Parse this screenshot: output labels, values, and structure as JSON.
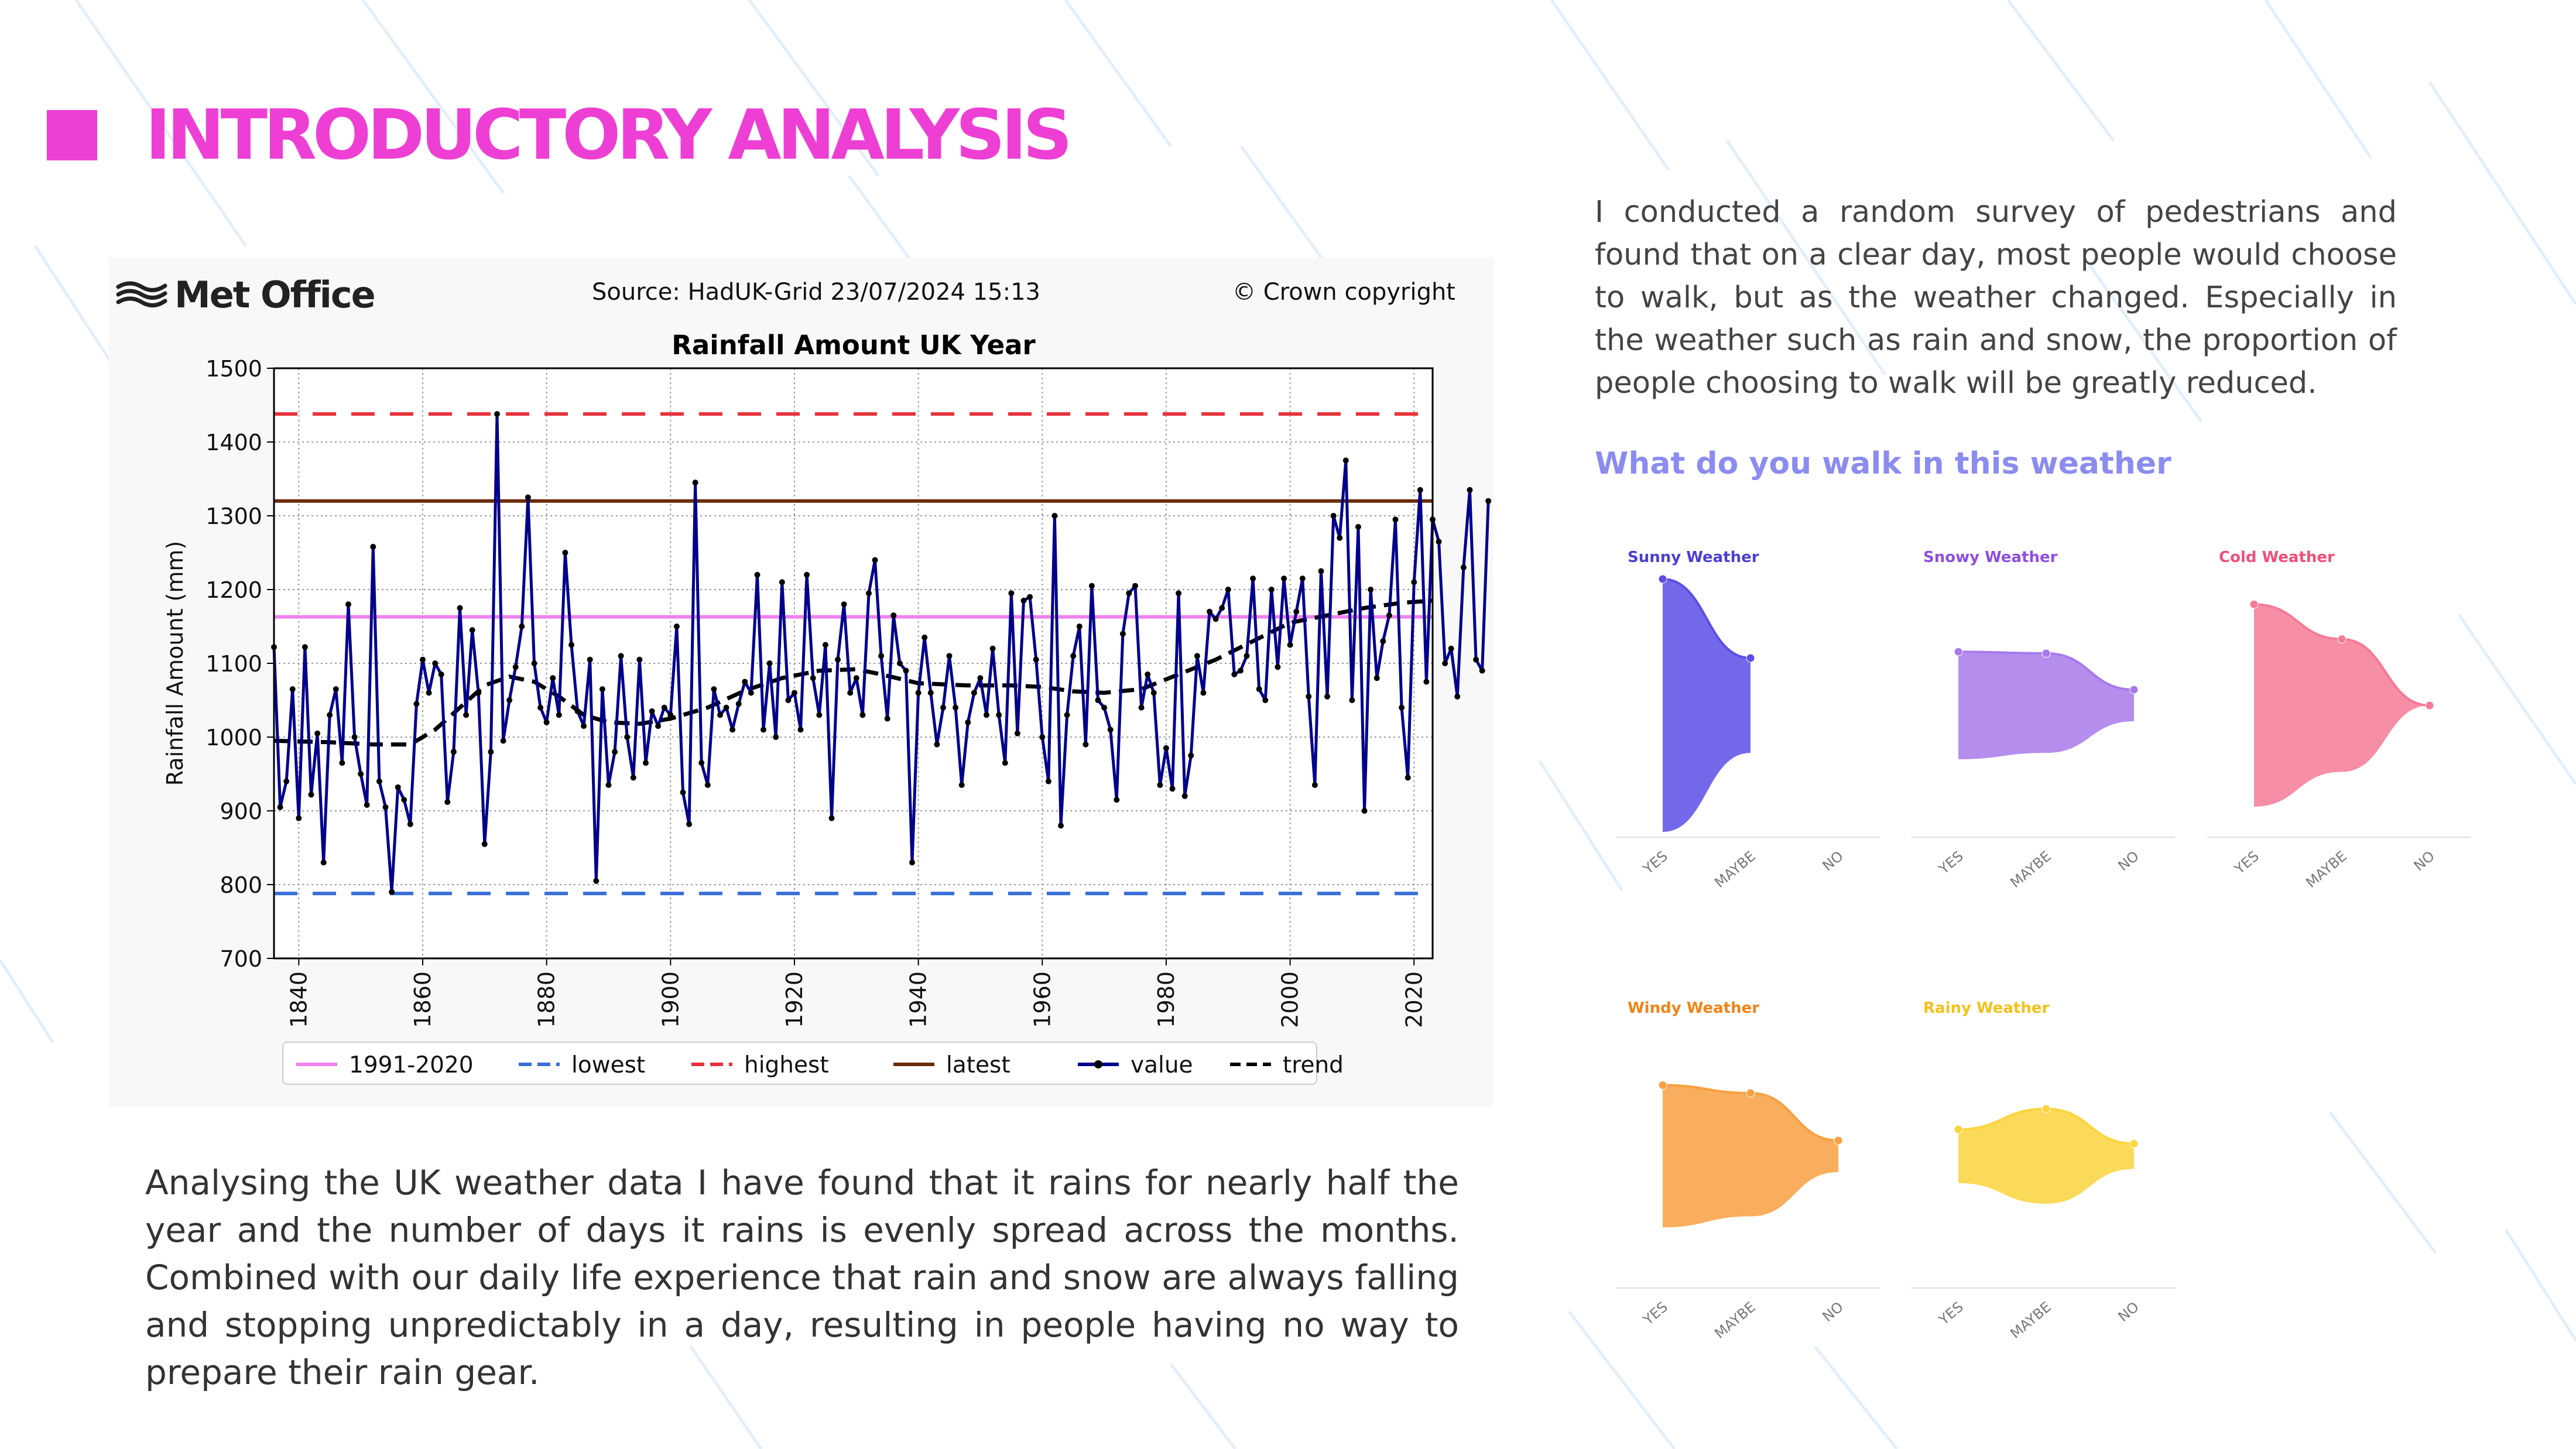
{
  "page": {
    "title": "INTRODUCTORY ANALYSIS",
    "title_color": "#ee3fd4",
    "accent_square_color": "#ee3fd4",
    "analysis_text": "Analysing the UK weather data I have found that it rains for nearly half the year and the number of days it rains is evenly spread across the months. Combined with our daily life experience that rain and snow are always falling and stopping unpredictably in a day, resulting in people having no way to prepare their rain gear.",
    "survey_text": "I conducted a random survey of pedestrians and found that on a clear day, most people would choose to walk, but as the weather changed. Especially in the weather such as rain and snow, the proportion of people choosing to walk will be greatly reduced.",
    "survey_question": "What do you walk in this weather",
    "survey_question_color": "#8b8cf0"
  },
  "chart_data": [
    {
      "type": "line",
      "logo_text": "Met Office",
      "source": "Source: HadUK-Grid 23/07/2024 15:13",
      "copyright": "© Crown copyright",
      "title": "Rainfall Amount UK Year",
      "xlabel": "",
      "ylabel": "Rainfall Amount (mm)",
      "xlim": [
        1836,
        2023
      ],
      "ylim": [
        700,
        1500
      ],
      "x_ticks": [
        "1840",
        "1860",
        "1880",
        "1900",
        "1920",
        "1940",
        "1960",
        "1980",
        "2000",
        "2020"
      ],
      "y_ticks": [
        "700",
        "800",
        "900",
        "1000",
        "1100",
        "1200",
        "1300",
        "1400",
        "1500"
      ],
      "grid": true,
      "legend_position": "bottom",
      "legend": [
        "1991-2020",
        "lowest",
        "highest",
        "latest",
        "value",
        "trend"
      ],
      "reference_lines": [
        {
          "name": "1991-2020",
          "value": 1163,
          "color": "#ee82ee",
          "style": "solid"
        },
        {
          "name": "lowest",
          "value": 788,
          "color": "#3a6fd8",
          "style": "dashed"
        },
        {
          "name": "highest",
          "value": 1438,
          "color": "#e8323c",
          "style": "dashed"
        },
        {
          "name": "latest",
          "value": 1320,
          "color": "#6b2c05",
          "style": "solid"
        }
      ],
      "series": [
        {
          "name": "value",
          "color": "#00008b",
          "x_start": 1836,
          "values": [
            1122,
            905,
            940,
            1065,
            890,
            1122,
            922,
            1005,
            830,
            1030,
            1065,
            965,
            1180,
            1000,
            950,
            908,
            1258,
            940,
            905,
            790,
            932,
            915,
            882,
            1045,
            1105,
            1060,
            1100,
            1085,
            912,
            980,
            1175,
            1030,
            1145,
            1060,
            855,
            980,
            1438,
            995,
            1050,
            1095,
            1150,
            1325,
            1100,
            1040,
            1020,
            1080,
            1030,
            1250,
            1125,
            1035,
            1015,
            1105,
            805,
            1065,
            935,
            980,
            1110,
            1000,
            945,
            1105,
            965,
            1035,
            1015,
            1040,
            1030,
            1150,
            925,
            882,
            1345,
            965,
            935,
            1065,
            1030,
            1040,
            1010,
            1045,
            1075,
            1060,
            1220,
            1010,
            1100,
            1000,
            1210,
            1050,
            1060,
            1010,
            1220,
            1080,
            1030,
            1125,
            890,
            1105,
            1180,
            1060,
            1080,
            1030,
            1195,
            1240,
            1110,
            1025,
            1165,
            1100,
            1090,
            830,
            1060,
            1135,
            1060,
            990,
            1040,
            1110,
            1040,
            935,
            1020,
            1060,
            1080,
            1030,
            1120,
            1030,
            965,
            1195,
            1005,
            1185,
            1190,
            1105,
            1000,
            940,
            1300,
            880,
            1030,
            1110,
            1150,
            990,
            1205,
            1050,
            1040,
            1010,
            915,
            1140,
            1195,
            1205,
            1040,
            1085,
            1060,
            935,
            985,
            930,
            1195,
            920,
            975,
            1110,
            1060,
            1170,
            1160,
            1175,
            1200,
            1085,
            1090,
            1110,
            1215,
            1065,
            1050,
            1200,
            1095,
            1215,
            1125,
            1170,
            1215,
            1055,
            935,
            1225,
            1055,
            1300,
            1270,
            1375,
            1050,
            1285,
            900,
            1200,
            1080,
            1130,
            1165,
            1295,
            1040,
            945,
            1210,
            1335,
            1075,
            1295,
            1265,
            1100,
            1120,
            1055,
            1230,
            1335,
            1105,
            1090,
            1320
          ]
        },
        {
          "name": "trend",
          "color": "#000000",
          "style": "dashed",
          "points": [
            [
              1836,
              995
            ],
            [
              1845,
              993
            ],
            [
              1852,
              990
            ],
            [
              1858,
              990
            ],
            [
              1862,
              1010
            ],
            [
              1866,
              1040
            ],
            [
              1870,
              1070
            ],
            [
              1874,
              1082
            ],
            [
              1878,
              1075
            ],
            [
              1882,
              1055
            ],
            [
              1886,
              1030
            ],
            [
              1890,
              1020
            ],
            [
              1895,
              1018
            ],
            [
              1900,
              1025
            ],
            [
              1906,
              1040
            ],
            [
              1912,
              1063
            ],
            [
              1918,
              1080
            ],
            [
              1924,
              1090
            ],
            [
              1930,
              1092
            ],
            [
              1934,
              1085
            ],
            [
              1940,
              1073
            ],
            [
              1948,
              1070
            ],
            [
              1955,
              1070
            ],
            [
              1960,
              1068
            ],
            [
              1965,
              1062
            ],
            [
              1970,
              1060
            ],
            [
              1976,
              1065
            ],
            [
              1982,
              1085
            ],
            [
              1988,
              1105
            ],
            [
              1994,
              1130
            ],
            [
              2000,
              1155
            ],
            [
              2006,
              1165
            ],
            [
              2012,
              1175
            ],
            [
              2018,
              1182
            ],
            [
              2023,
              1185
            ]
          ]
        }
      ]
    },
    {
      "type": "area",
      "title": "Sunny Weather",
      "title_color": "#4b3fd1",
      "color": "#5b4de6",
      "categories": [
        "YES",
        "MAYBE",
        "NO"
      ],
      "upper": [
        8,
        3,
        null
      ],
      "lower": [
        -8,
        -3,
        null
      ]
    },
    {
      "type": "area",
      "title": "Snowy Weather",
      "title_color": "#8e4fe0",
      "color": "#a779ea",
      "categories": [
        "YES",
        "MAYBE",
        "NO"
      ],
      "upper": [
        3.4,
        3.3,
        1
      ],
      "lower": [
        -3.4,
        -3.0,
        -1
      ]
    },
    {
      "type": "area",
      "title": "Cold Weather",
      "title_color": "#ef4f7a",
      "color": "#f47a96",
      "categories": [
        "YES",
        "MAYBE",
        "NO"
      ],
      "upper": [
        6.4,
        4.2,
        0
      ],
      "lower": [
        -6.4,
        -4.2,
        0
      ]
    },
    {
      "type": "area",
      "title": "Windy Weather",
      "title_color": "#f08418",
      "color": "#f7a040",
      "categories": [
        "YES",
        "MAYBE",
        "NO"
      ],
      "upper": [
        4.5,
        4.0,
        1
      ],
      "lower": [
        -4.5,
        -3.8,
        -1
      ]
    },
    {
      "type": "area",
      "title": "Rainy Weather",
      "title_color": "#f2c21a",
      "color": "#fcd43c",
      "categories": [
        "YES",
        "MAYBE",
        "NO"
      ],
      "upper": [
        1.7,
        3.0,
        0.8
      ],
      "lower": [
        -1.7,
        -3.0,
        -0.8
      ]
    }
  ]
}
